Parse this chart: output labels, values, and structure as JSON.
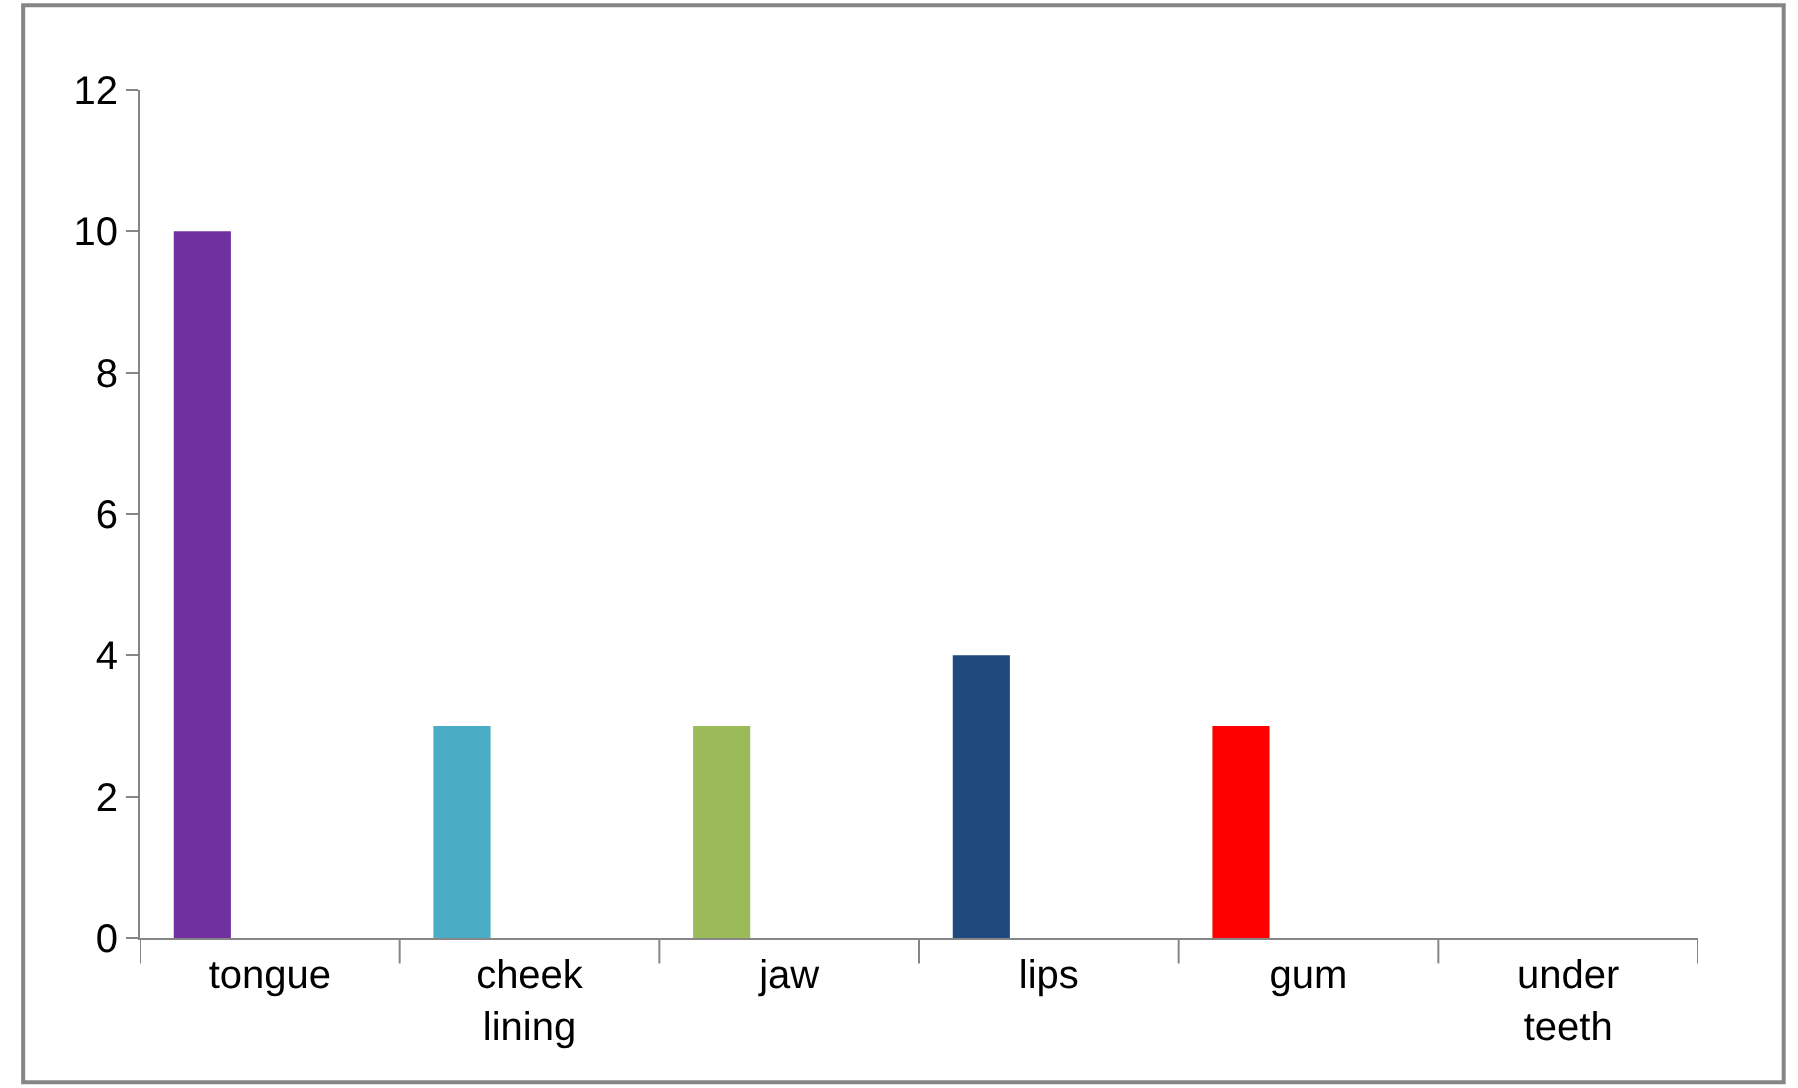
{
  "chart_data": {
    "type": "bar",
    "categories": [
      "tongue",
      "cheek lining",
      "jaw",
      "lips",
      "gum",
      "under teeth"
    ],
    "values": [
      10,
      3,
      3,
      4,
      3,
      0
    ],
    "colors": [
      "#7030a0",
      "#4bacc6",
      "#9bbb59",
      "#1f497d",
      "#ff0000",
      "#f79646"
    ],
    "ylim": [
      0,
      12
    ],
    "yticks": [
      0,
      2,
      4,
      6,
      8,
      10,
      12
    ],
    "grid": false
  }
}
